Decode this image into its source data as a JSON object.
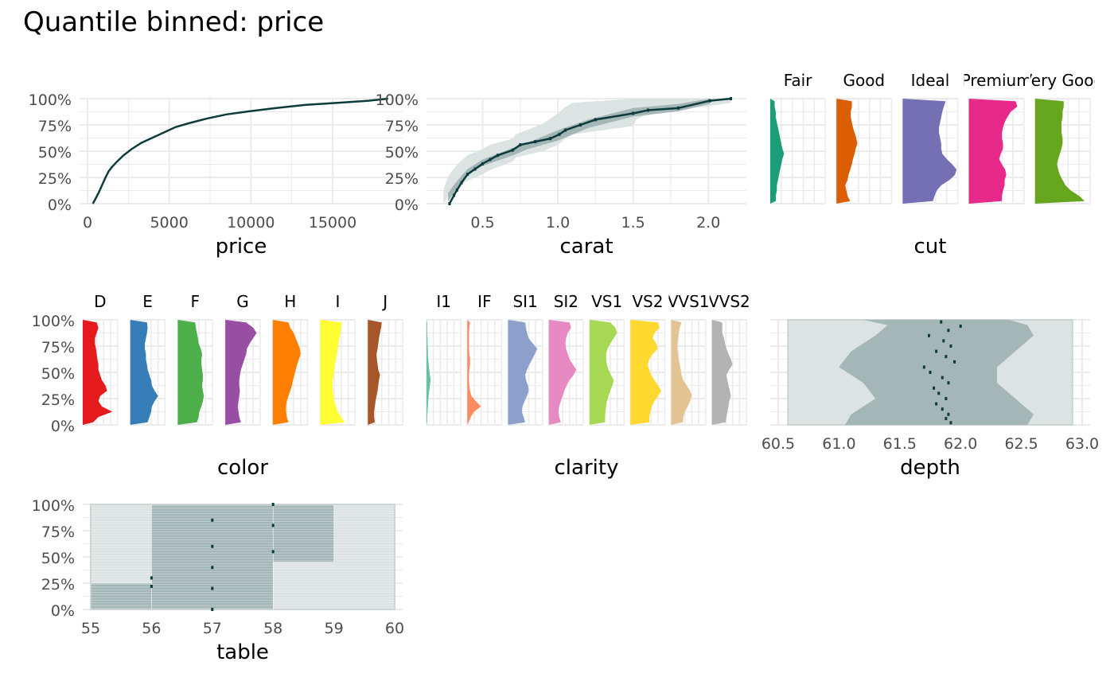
{
  "title": "Quantile binned: price",
  "colors": {
    "grid": "#ebebeb",
    "tick_text": "#4d4d4d",
    "label_text": "#000000",
    "line_dark": "#0d3b3b",
    "band_dark": "#a4b6b6",
    "band_light": "#dbe3e3",
    "band_edge": "#c9d4d4"
  },
  "chart_data": [
    {
      "id": "price",
      "type": "line",
      "xlabel": "price",
      "ylabel": "",
      "xlim": [
        0,
        18800
      ],
      "ylim": [
        0,
        1
      ],
      "x_ticks": [
        0,
        5000,
        10000,
        15000
      ],
      "x_tick_labels": [
        "0",
        "5000",
        "10000",
        "15000"
      ],
      "y_ticks": [
        0,
        0.25,
        0.5,
        0.75,
        1
      ],
      "y_tick_labels": [
        "0%",
        "25%",
        "50%",
        "75%",
        "100%"
      ],
      "series": [
        {
          "x": [
            326,
            500,
            700,
            900,
            1100,
            1300,
            1500,
            1800,
            2200,
            2700,
            3300,
            4000,
            4700,
            5400,
            6300,
            7300,
            8500,
            9900,
            11500,
            13300,
            15300,
            17200,
            18400
          ],
          "y": [
            0,
            0.05,
            0.11,
            0.18,
            0.25,
            0.31,
            0.35,
            0.4,
            0.46,
            0.52,
            0.58,
            0.63,
            0.68,
            0.73,
            0.77,
            0.81,
            0.85,
            0.88,
            0.91,
            0.94,
            0.96,
            0.98,
            1.0
          ]
        }
      ]
    },
    {
      "id": "carat",
      "type": "line",
      "xlabel": "carat",
      "ylabel": "",
      "xlim": [
        0.18,
        2.2
      ],
      "ylim": [
        0,
        1
      ],
      "x_ticks": [
        0.5,
        1.0,
        1.5,
        2.0
      ],
      "x_tick_labels": [
        "0.5",
        "1.0",
        "1.5",
        "2.0"
      ],
      "y_ticks": [
        0,
        0.25,
        0.5,
        0.75,
        1
      ],
      "y_tick_labels": [
        "0%",
        "25%",
        "50%",
        "75%",
        "100%"
      ],
      "series": [
        {
          "x": [
            0.28,
            0.31,
            0.33,
            0.36,
            0.4,
            0.45,
            0.5,
            0.55,
            0.6,
            0.7,
            0.75,
            0.85,
            0.95,
            1.01,
            1.05,
            1.15,
            1.25,
            1.5,
            1.6,
            1.8,
            2.01,
            2.15
          ],
          "y": [
            0.0,
            0.08,
            0.13,
            0.2,
            0.28,
            0.33,
            0.38,
            0.42,
            0.46,
            0.51,
            0.56,
            0.59,
            0.62,
            0.66,
            0.7,
            0.75,
            0.8,
            0.86,
            0.89,
            0.91,
            0.98,
            1.0
          ]
        }
      ],
      "band_outer": {
        "x": [
          0.24,
          0.25,
          0.27,
          0.3,
          0.35,
          0.4,
          0.5,
          0.55,
          0.7,
          0.72,
          0.9,
          1.0,
          1.05,
          1.1,
          1.5,
          1.52,
          1.6,
          2.0,
          2.15
        ],
        "y_lo": [
          0.0,
          0.02,
          0.08,
          0.12,
          0.18,
          0.22,
          0.28,
          0.32,
          0.4,
          0.44,
          0.5,
          0.56,
          0.62,
          0.66,
          0.74,
          0.8,
          0.86,
          0.93,
          0.96
        ],
        "y_hi": [
          0.12,
          0.18,
          0.25,
          0.32,
          0.4,
          0.46,
          0.52,
          0.56,
          0.62,
          0.66,
          0.76,
          0.86,
          0.92,
          0.96,
          1.0,
          1.0,
          1.0,
          1.0,
          1.0
        ]
      },
      "band_inner": {
        "x": [
          0.27,
          0.3,
          0.35,
          0.4,
          0.5,
          0.7,
          0.8,
          1.0,
          1.2,
          1.5,
          1.8,
          2.01
        ],
        "y_lo": [
          0.02,
          0.08,
          0.18,
          0.28,
          0.36,
          0.46,
          0.52,
          0.6,
          0.72,
          0.83,
          0.88,
          0.95
        ],
        "y_hi": [
          0.1,
          0.16,
          0.25,
          0.33,
          0.42,
          0.53,
          0.58,
          0.7,
          0.8,
          0.91,
          0.95,
          1.0
        ]
      }
    },
    {
      "id": "cut",
      "type": "area",
      "xlabel": "cut",
      "ylabel": "",
      "ylim": [
        0,
        1
      ],
      "facets": [
        "Fair",
        "Good",
        "Ideal",
        "Premium",
        "Very Good"
      ],
      "facet_colors": [
        "#1b9e77",
        "#d95f02",
        "#7570b3",
        "#e7298a",
        "#66a61e"
      ],
      "profiles": [
        [
          0.1,
          0.1,
          0.12,
          0.12,
          0.14,
          0.16,
          0.18,
          0.2,
          0.22,
          0.25,
          0.22,
          0.2,
          0.18,
          0.16,
          0.14,
          0.12,
          0.1,
          0.1,
          0.08,
          0.08
        ],
        [
          0.25,
          0.2,
          0.18,
          0.16,
          0.2,
          0.22,
          0.25,
          0.28,
          0.3,
          0.33,
          0.35,
          0.38,
          0.36,
          0.33,
          0.3,
          0.28,
          0.26,
          0.26,
          0.28,
          0.28
        ],
        [
          0.55,
          0.58,
          0.62,
          0.7,
          0.85,
          0.95,
          0.98,
          0.9,
          0.8,
          0.72,
          0.7,
          0.7,
          0.68,
          0.66,
          0.66,
          0.68,
          0.7,
          0.72,
          0.75,
          0.78
        ],
        [
          0.6,
          0.6,
          0.62,
          0.65,
          0.65,
          0.68,
          0.66,
          0.6,
          0.55,
          0.58,
          0.62,
          0.62,
          0.6,
          0.6,
          0.62,
          0.65,
          0.7,
          0.76,
          0.88,
          0.85
        ],
        [
          0.9,
          0.8,
          0.65,
          0.55,
          0.5,
          0.45,
          0.42,
          0.4,
          0.42,
          0.45,
          0.48,
          0.5,
          0.5,
          0.48,
          0.48,
          0.48,
          0.5,
          0.5,
          0.52,
          0.52
        ]
      ]
    },
    {
      "id": "color",
      "type": "area",
      "xlabel": "color",
      "ylabel": "",
      "ylim": [
        0,
        1
      ],
      "y_ticks": [
        0,
        0.25,
        0.5,
        0.75,
        1
      ],
      "y_tick_labels": [
        "0%",
        "25%",
        "50%",
        "75%",
        "100%"
      ],
      "facets": [
        "D",
        "E",
        "F",
        "G",
        "H",
        "I",
        "J"
      ],
      "facet_colors": [
        "#e41a1c",
        "#377eb8",
        "#4daf4a",
        "#984ea3",
        "#ff7f00",
        "#ffff33",
        "#a65628"
      ],
      "profiles": [
        [
          0.3,
          0.45,
          0.85,
          0.55,
          0.45,
          0.5,
          0.7,
          0.65,
          0.55,
          0.5,
          0.45,
          0.45,
          0.42,
          0.4,
          0.38,
          0.35,
          0.35,
          0.4,
          0.45,
          0.4
        ],
        [
          0.5,
          0.55,
          0.6,
          0.62,
          0.7,
          0.8,
          0.7,
          0.62,
          0.6,
          0.55,
          0.5,
          0.48,
          0.45,
          0.45,
          0.42,
          0.42,
          0.45,
          0.48,
          0.5,
          0.48
        ],
        [
          0.55,
          0.6,
          0.62,
          0.68,
          0.72,
          0.75,
          0.72,
          0.7,
          0.72,
          0.72,
          0.7,
          0.68,
          0.68,
          0.7,
          0.66,
          0.6,
          0.58,
          0.55,
          0.52,
          0.5
        ],
        [
          0.45,
          0.4,
          0.38,
          0.36,
          0.38,
          0.4,
          0.42,
          0.4,
          0.4,
          0.42,
          0.45,
          0.5,
          0.55,
          0.6,
          0.62,
          0.7,
          0.8,
          0.9,
          0.8,
          0.6
        ],
        [
          0.45,
          0.4,
          0.38,
          0.38,
          0.4,
          0.45,
          0.5,
          0.55,
          0.58,
          0.62,
          0.66,
          0.7,
          0.75,
          0.8,
          0.78,
          0.72,
          0.66,
          0.6,
          0.5,
          0.45
        ],
        [
          0.7,
          0.6,
          0.5,
          0.45,
          0.4,
          0.38,
          0.36,
          0.35,
          0.36,
          0.38,
          0.4,
          0.42,
          0.45,
          0.48,
          0.5,
          0.52,
          0.55,
          0.58,
          0.6,
          0.62
        ],
        [
          0.2,
          0.18,
          0.18,
          0.2,
          0.22,
          0.25,
          0.28,
          0.3,
          0.32,
          0.35,
          0.3,
          0.28,
          0.26,
          0.25,
          0.28,
          0.3,
          0.32,
          0.35,
          0.38,
          0.4
        ]
      ]
    },
    {
      "id": "clarity",
      "type": "area",
      "xlabel": "clarity",
      "ylabel": "",
      "ylim": [
        0,
        1
      ],
      "facets": [
        "I1",
        "IF",
        "SI1",
        "SI2",
        "VS1",
        "VS2",
        "VVS1",
        "VVS2"
      ],
      "facet_colors": [
        "#66c2a5",
        "#fc8d62",
        "#8da0cb",
        "#e78ac3",
        "#a6d854",
        "#ffd92f",
        "#e5c494",
        "#b3b3b3"
      ],
      "profiles": [
        [
          0.02,
          0.02,
          0.03,
          0.04,
          0.05,
          0.06,
          0.08,
          0.1,
          0.12,
          0.1,
          0.08,
          0.06,
          0.05,
          0.04,
          0.04,
          0.03,
          0.03,
          0.02,
          0.02,
          0.02
        ],
        [
          0.04,
          0.1,
          0.2,
          0.4,
          0.25,
          0.12,
          0.08,
          0.06,
          0.05,
          0.05,
          0.06,
          0.08,
          0.08,
          0.06,
          0.05,
          0.05,
          0.05,
          0.05,
          0.06,
          0.08
        ],
        [
          0.5,
          0.45,
          0.4,
          0.42,
          0.48,
          0.55,
          0.6,
          0.58,
          0.52,
          0.5,
          0.55,
          0.62,
          0.7,
          0.78,
          0.85,
          0.72,
          0.6,
          0.55,
          0.52,
          0.5
        ],
        [
          0.35,
          0.3,
          0.28,
          0.3,
          0.35,
          0.4,
          0.45,
          0.52,
          0.6,
          0.72,
          0.8,
          0.7,
          0.6,
          0.55,
          0.5,
          0.48,
          0.5,
          0.55,
          0.65,
          0.6
        ],
        [
          0.45,
          0.45,
          0.46,
          0.48,
          0.5,
          0.55,
          0.6,
          0.66,
          0.7,
          0.62,
          0.55,
          0.5,
          0.48,
          0.48,
          0.52,
          0.6,
          0.7,
          0.8,
          0.75,
          0.6
        ],
        [
          0.55,
          0.55,
          0.58,
          0.62,
          0.7,
          0.8,
          0.9,
          0.8,
          0.7,
          0.6,
          0.55,
          0.5,
          0.55,
          0.65,
          0.8,
          0.75,
          0.65,
          0.7,
          0.85,
          0.8
        ],
        [
          0.35,
          0.35,
          0.4,
          0.48,
          0.55,
          0.6,
          0.55,
          0.45,
          0.35,
          0.3,
          0.28,
          0.25,
          0.22,
          0.2,
          0.18,
          0.18,
          0.2,
          0.22,
          0.25,
          0.3
        ],
        [
          0.4,
          0.42,
          0.45,
          0.48,
          0.5,
          0.55,
          0.52,
          0.48,
          0.45,
          0.42,
          0.5,
          0.6,
          0.55,
          0.48,
          0.42,
          0.38,
          0.35,
          0.3,
          0.3,
          0.3
        ]
      ]
    },
    {
      "id": "depth",
      "type": "line",
      "xlabel": "depth",
      "ylabel": "",
      "xlim": [
        60.5,
        63.0
      ],
      "ylim": [
        0,
        1
      ],
      "x_ticks": [
        60.5,
        61.0,
        61.5,
        62.0,
        62.5,
        63.0
      ],
      "x_tick_labels": [
        "60.5",
        "61.0",
        "61.5",
        "62.0",
        "62.5",
        "63.0"
      ],
      "series": [
        {
          "x": [
            61.92,
            61.88,
            61.9,
            61.85,
            61.8,
            61.88,
            61.82,
            61.78,
            61.9,
            61.85,
            61.75,
            61.7,
            61.95,
            61.88,
            61.8,
            61.92,
            61.86,
            61.74,
            61.9,
            62.0,
            61.84
          ],
          "y": [
            0.02,
            0.06,
            0.1,
            0.15,
            0.2,
            0.25,
            0.3,
            0.35,
            0.4,
            0.45,
            0.5,
            0.55,
            0.6,
            0.65,
            0.7,
            0.75,
            0.8,
            0.85,
            0.9,
            0.94,
            0.98
          ]
        }
      ],
      "band_outer": {
        "x": [
          60.58,
          62.92
        ],
        "y_lo": [
          0,
          0
        ],
        "y_hi": [
          1,
          1
        ]
      },
      "band_inner": {
        "x": [
          61.05,
          61.1,
          61.3,
          61.2,
          61.0,
          61.1,
          61.3,
          61.4,
          61.2
        ],
        "x_hi": [
          62.55,
          62.6,
          62.45,
          62.3,
          62.3,
          62.45,
          62.6,
          62.55,
          62.4
        ],
        "y": [
          0.0,
          0.1,
          0.25,
          0.4,
          0.55,
          0.7,
          0.85,
          0.95,
          1.0
        ]
      }
    },
    {
      "id": "table",
      "type": "line",
      "xlabel": "table",
      "ylabel": "",
      "xlim": [
        55,
        60
      ],
      "ylim": [
        0,
        1
      ],
      "x_ticks": [
        55,
        56,
        57,
        58,
        59,
        60
      ],
      "x_tick_labels": [
        "55",
        "56",
        "57",
        "58",
        "59",
        "60"
      ],
      "y_ticks": [
        0,
        0.25,
        0.5,
        0.75,
        1
      ],
      "y_tick_labels": [
        "0%",
        "25%",
        "50%",
        "75%",
        "100%"
      ],
      "series": [
        {
          "x": [
            56.0,
            56.0,
            57.0,
            57.0,
            57.0,
            57.0,
            57.0,
            58.0,
            58.0,
            58.0
          ],
          "y": [
            0.22,
            0.3,
            0.0,
            0.2,
            0.4,
            0.6,
            0.85,
            0.55,
            0.8,
            1.0
          ]
        }
      ],
      "band_outer": {
        "x": [
          55.0,
          60.0
        ],
        "y_lo": [
          0,
          0
        ],
        "y_hi": [
          1,
          1
        ]
      },
      "band_inner_rects": [
        {
          "x0": 55.0,
          "x1": 56.0,
          "y0": 0.0,
          "y1": 0.25
        },
        {
          "x0": 56.0,
          "x1": 58.0,
          "y0": 0.0,
          "y1": 1.0
        },
        {
          "x0": 58.0,
          "x1": 59.0,
          "y0": 0.45,
          "y1": 1.0
        }
      ]
    }
  ]
}
